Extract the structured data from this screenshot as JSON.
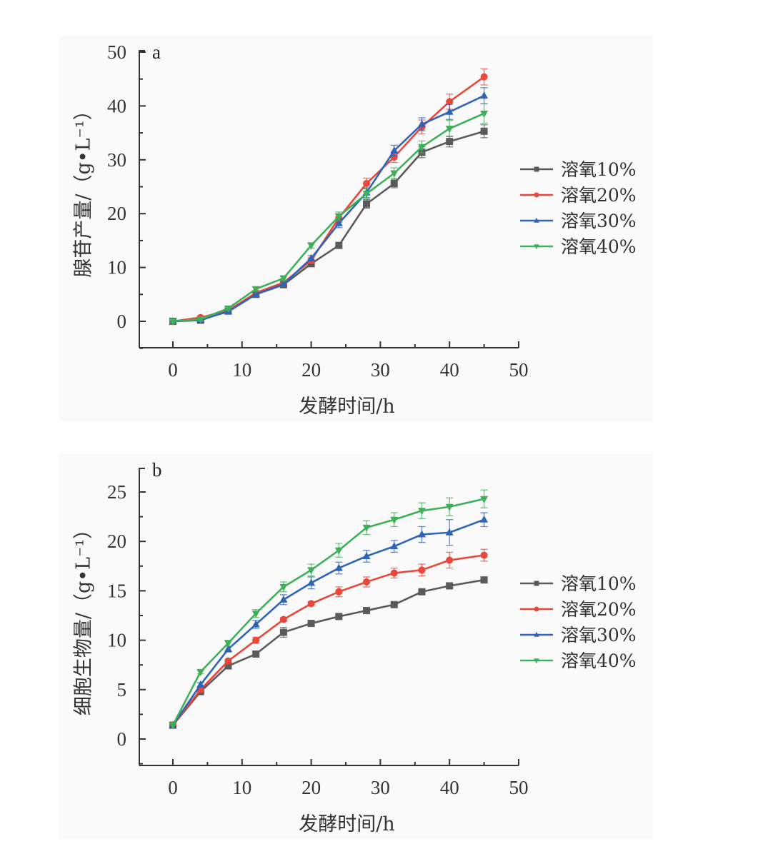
{
  "colors": {
    "series": [
      "#5a5a5a",
      "#e8473a",
      "#2f64b8",
      "#3fb05a"
    ],
    "axis": "#333333"
  },
  "chart_data": [
    {
      "type": "line",
      "panel": "a",
      "title": "",
      "xlabel": "发酵时间/h",
      "ylabel": "腺苷产量/（g•L⁻¹）",
      "xlim": [
        -5,
        50
      ],
      "ylim": [
        -5,
        50
      ],
      "xticks": [
        0,
        10,
        20,
        30,
        40,
        50
      ],
      "yticks": [
        0,
        10,
        20,
        30,
        40,
        50
      ],
      "xtick_labels": [
        "0",
        "10",
        "20",
        "30",
        "40",
        "50"
      ],
      "ytick_labels": [
        "0",
        "10",
        "20",
        "30",
        "40",
        "50"
      ],
      "legend_position": "right",
      "grid": false,
      "x": [
        0,
        4,
        8,
        12,
        16,
        20,
        24,
        28,
        32,
        36,
        40,
        45
      ],
      "series": [
        {
          "name": "溶氧10%",
          "marker": "square",
          "values": [
            0,
            0.2,
            1.9,
            5.0,
            6.8,
            10.7,
            14.1,
            21.8,
            25.6,
            31.4,
            33.4,
            35.3
          ],
          "errors": [
            0.3,
            0.3,
            0.3,
            0.4,
            0.4,
            0.5,
            0.5,
            0.8,
            0.8,
            1.0,
            1.0,
            1.2
          ]
        },
        {
          "name": "溶氧20%",
          "marker": "circle",
          "values": [
            0,
            0.7,
            2.0,
            5.3,
            7.2,
            11.3,
            19.2,
            25.6,
            30.5,
            36.1,
            40.8,
            45.4
          ],
          "errors": [
            0.3,
            0.3,
            0.3,
            0.4,
            0.4,
            0.5,
            0.8,
            1.0,
            1.0,
            1.3,
            1.4,
            1.5
          ]
        },
        {
          "name": "溶氧30%",
          "marker": "triangle-up",
          "values": [
            0,
            0.3,
            1.8,
            5.0,
            6.9,
            11.7,
            18.2,
            23.9,
            31.7,
            36.6,
            38.9,
            41.9
          ],
          "errors": [
            0.3,
            0.3,
            0.3,
            0.4,
            0.4,
            0.5,
            0.8,
            0.9,
            1.0,
            1.2,
            1.4,
            1.5
          ]
        },
        {
          "name": "溶氧40%",
          "marker": "triangle-down",
          "values": [
            0,
            0.4,
            2.4,
            6.0,
            8.0,
            14.1,
            19.5,
            23.7,
            27.5,
            32.4,
            35.8,
            38.6
          ],
          "errors": [
            0.3,
            0.3,
            0.3,
            0.4,
            0.4,
            0.5,
            0.8,
            0.9,
            1.0,
            1.1,
            1.5,
            1.8
          ]
        }
      ]
    },
    {
      "type": "line",
      "panel": "b",
      "title": "",
      "xlabel": "发酵时间/h",
      "ylabel": "细胞生物量/（g•L⁻¹）",
      "xlim": [
        -5,
        50
      ],
      "ylim": [
        -2.5,
        27.5
      ],
      "xticks": [
        0,
        10,
        20,
        30,
        40,
        50
      ],
      "yticks": [
        0,
        5,
        10,
        15,
        20,
        25
      ],
      "xtick_labels": [
        "0",
        "10",
        "20",
        "30",
        "40",
        "50"
      ],
      "ytick_labels": [
        "0",
        "5",
        "10",
        "15",
        "20",
        "25"
      ],
      "legend_position": "right",
      "grid": false,
      "x": [
        0,
        4,
        8,
        12,
        16,
        20,
        24,
        28,
        32,
        36,
        40,
        45
      ],
      "series": [
        {
          "name": "溶氧10%",
          "marker": "square",
          "values": [
            1.4,
            4.8,
            7.4,
            8.6,
            10.8,
            11.7,
            12.4,
            13.0,
            13.6,
            14.9,
            15.5,
            16.1
          ],
          "errors": [
            0.1,
            0.2,
            0.2,
            0.2,
            0.5,
            0.3,
            0.2,
            0.3,
            0.2,
            0.2,
            0.2,
            0.2
          ]
        },
        {
          "name": "溶氧20%",
          "marker": "circle",
          "values": [
            1.4,
            5.0,
            7.9,
            10.0,
            12.1,
            13.7,
            14.9,
            15.9,
            16.8,
            17.1,
            18.1,
            18.6
          ],
          "errors": [
            0.1,
            0.2,
            0.2,
            0.3,
            0.2,
            0.2,
            0.5,
            0.5,
            0.5,
            0.6,
            0.8,
            0.6
          ]
        },
        {
          "name": "溶氧30%",
          "marker": "triangle-up",
          "values": [
            1.4,
            5.5,
            9.1,
            11.6,
            14.1,
            15.8,
            17.3,
            18.5,
            19.5,
            20.7,
            20.9,
            22.2
          ],
          "errors": [
            0.1,
            0.2,
            0.3,
            0.4,
            0.5,
            0.6,
            0.6,
            0.6,
            0.6,
            0.8,
            1.3,
            0.7
          ]
        },
        {
          "name": "溶氧40%",
          "marker": "triangle-down",
          "values": [
            1.4,
            6.8,
            9.7,
            12.7,
            15.4,
            17.1,
            19.1,
            21.4,
            22.2,
            23.1,
            23.5,
            24.3
          ],
          "errors": [
            0.1,
            0.2,
            0.3,
            0.4,
            0.5,
            0.6,
            0.7,
            0.7,
            0.7,
            0.8,
            0.9,
            0.9
          ]
        }
      ]
    }
  ],
  "panels": [
    {
      "letter": "a"
    },
    {
      "letter": "b"
    }
  ]
}
